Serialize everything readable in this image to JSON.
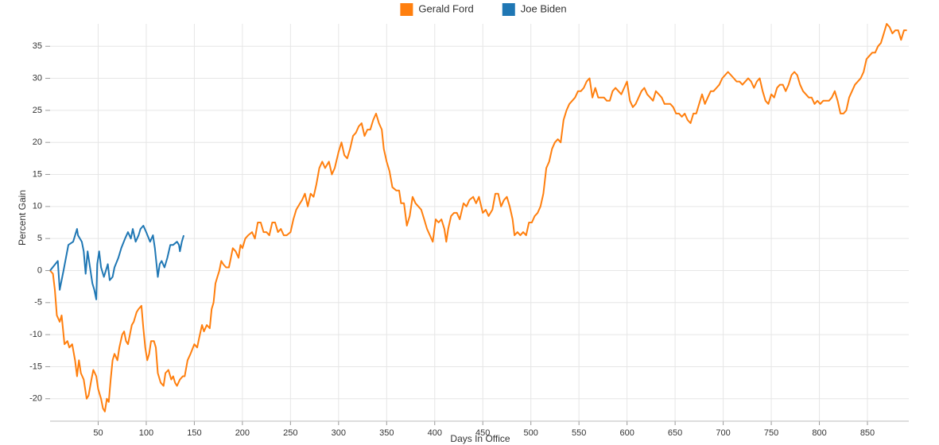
{
  "chart_data": {
    "type": "line",
    "x_label": "Days In Office",
    "y_label": "Percent Gain",
    "xlim": [
      0,
      893
    ],
    "ylim": [
      -23.5,
      38.5
    ],
    "xticks": [
      50,
      100,
      150,
      200,
      250,
      300,
      350,
      400,
      450,
      500,
      550,
      600,
      650,
      700,
      750,
      800,
      850
    ],
    "yticks": [
      -20,
      -15,
      -10,
      -5,
      0,
      5,
      10,
      15,
      20,
      25,
      30,
      35
    ],
    "grid": true,
    "legend": "top",
    "series": [
      {
        "name": "Gerald Ford",
        "color": "#ff7f0e",
        "x": [
          0,
          3,
          5,
          7,
          10,
          12,
          15,
          18,
          20,
          23,
          26,
          28,
          30,
          32,
          35,
          38,
          40,
          43,
          45,
          48,
          50,
          53,
          55,
          57,
          59,
          61,
          63,
          65,
          67,
          70,
          72,
          75,
          77,
          79,
          81,
          83,
          85,
          87,
          90,
          92,
          95,
          97,
          99,
          101,
          103,
          105,
          108,
          110,
          112,
          115,
          118,
          120,
          123,
          126,
          128,
          130,
          132,
          135,
          138,
          140,
          143,
          146,
          150,
          153,
          155,
          158,
          160,
          163,
          166,
          168,
          170,
          172,
          174,
          176,
          178,
          180,
          183,
          186,
          188,
          190,
          193,
          196,
          198,
          200,
          203,
          206,
          210,
          213,
          216,
          219,
          222,
          225,
          228,
          231,
          234,
          237,
          240,
          243,
          246,
          250,
          253,
          256,
          260,
          262,
          265,
          268,
          271,
          274,
          277,
          280,
          283,
          286,
          290,
          293,
          296,
          300,
          303,
          306,
          309,
          312,
          315,
          318,
          321,
          324,
          327,
          330,
          333,
          336,
          339,
          342,
          345,
          347,
          350,
          353,
          356,
          360,
          363,
          365,
          368,
          371,
          374,
          377,
          380,
          383,
          386,
          389,
          392,
          395,
          398,
          401,
          404,
          407,
          410,
          412,
          414,
          417,
          420,
          423,
          426,
          430,
          433,
          436,
          440,
          443,
          446,
          450,
          453,
          456,
          460,
          463,
          466,
          469,
          472,
          475,
          478,
          481,
          483,
          486,
          489,
          492,
          495,
          498,
          501,
          504,
          507,
          510,
          513,
          516,
          519,
          522,
          525,
          528,
          531,
          534,
          537,
          540,
          543,
          546,
          549,
          552,
          555,
          558,
          561,
          564,
          567,
          570,
          573,
          576,
          579,
          582,
          585,
          588,
          591,
          594,
          597,
          600,
          603,
          606,
          609,
          612,
          615,
          618,
          621,
          624,
          627,
          630,
          633,
          636,
          639,
          642,
          645,
          648,
          651,
          654,
          657,
          660,
          663,
          666,
          669,
          672,
          675,
          678,
          681,
          684,
          687,
          690,
          693,
          696,
          699,
          702,
          705,
          708,
          711,
          714,
          717,
          720,
          723,
          726,
          729,
          732,
          735,
          738,
          741,
          744,
          747,
          750,
          753,
          756,
          759,
          762,
          765,
          768,
          771,
          774,
          777,
          780,
          783,
          786,
          789,
          792,
          795,
          798,
          801,
          804,
          807,
          810,
          813,
          816,
          819,
          822,
          825,
          828,
          831,
          834,
          837,
          840,
          843,
          846,
          849,
          852,
          855,
          858,
          861,
          864,
          867,
          870,
          873,
          876,
          879,
          882,
          885,
          888,
          891
        ],
        "values": [
          0,
          -0.5,
          -3,
          -7,
          -8,
          -7,
          -11.5,
          -11,
          -12,
          -11.5,
          -14,
          -16.5,
          -14,
          -16,
          -17,
          -20,
          -19.5,
          -17,
          -15.5,
          -16.5,
          -18.5,
          -20,
          -21.5,
          -22,
          -20,
          -20.5,
          -17,
          -14,
          -13,
          -14,
          -12,
          -10,
          -9.5,
          -11,
          -11.5,
          -10,
          -8.5,
          -8,
          -6.5,
          -6,
          -5.5,
          -9,
          -12,
          -14,
          -13,
          -11,
          -11,
          -12,
          -16,
          -17.5,
          -18,
          -16,
          -15.5,
          -17,
          -16.5,
          -17.5,
          -18,
          -17,
          -16.5,
          -16.5,
          -14,
          -13,
          -11.5,
          -12,
          -10.5,
          -8.5,
          -9.5,
          -8.5,
          -9,
          -6,
          -5,
          -2,
          -1,
          0,
          1.5,
          1,
          0.5,
          0.5,
          2,
          3.5,
          3,
          2,
          4,
          3.5,
          5,
          5.5,
          6,
          5,
          7.5,
          7.5,
          6,
          6,
          5.5,
          7.5,
          7.5,
          6,
          6.5,
          5.5,
          5.5,
          6,
          8,
          9.5,
          10.5,
          11,
          12,
          10,
          12,
          11.5,
          13.5,
          16,
          17,
          16,
          17,
          15,
          16,
          18.5,
          20,
          18,
          17.5,
          19,
          21,
          21.5,
          22.5,
          23,
          21,
          22,
          22,
          23.5,
          24.5,
          23,
          22,
          19,
          17,
          15.5,
          13,
          12.5,
          12.5,
          10.5,
          10.5,
          7,
          8.5,
          11.5,
          10.5,
          10,
          9.5,
          8,
          6.5,
          5.5,
          4.5,
          8,
          7.5,
          8,
          6.5,
          4.5,
          6.5,
          8.5,
          9,
          9,
          8,
          10.5,
          10,
          11,
          11.5,
          10.5,
          11.5,
          9,
          9.5,
          8.5,
          9.5,
          12,
          12,
          10,
          11,
          11.5,
          10,
          8,
          5.5,
          6,
          5.5,
          6,
          5.5,
          7.5,
          7.5,
          8.5,
          9,
          10,
          12,
          16,
          17,
          19,
          20,
          20.5,
          20,
          23.5,
          25,
          26,
          26.5,
          27,
          28,
          28,
          28.5,
          29.5,
          30,
          27,
          28.5,
          27,
          27,
          27,
          26.5,
          26.5,
          28,
          28.5,
          28,
          27.5,
          28.5,
          29.5,
          26.5,
          25.5,
          26,
          27,
          28,
          28.5,
          27.5,
          27,
          26.5,
          28,
          27.5,
          27,
          26,
          26,
          26,
          25.5,
          24.5,
          24.5,
          24,
          24.5,
          23.5,
          23,
          24.5,
          24.5,
          26,
          27.5,
          26,
          27,
          28,
          28,
          28.5,
          29,
          30,
          30.5,
          31,
          30.5,
          30,
          29.5,
          29.5,
          29,
          29.5,
          30,
          29.5,
          28.5,
          29.5,
          30,
          28,
          26.5,
          26,
          27.5,
          27,
          28.5,
          29,
          29,
          28,
          29,
          30.5,
          31,
          30.5,
          29,
          28,
          27.5,
          27,
          27,
          26,
          26.5,
          26,
          26.5,
          26.5,
          26.5,
          27,
          28,
          26.5,
          24.5,
          24.5,
          25,
          27,
          28,
          29,
          29.5,
          30,
          31,
          33,
          33.5,
          34,
          34,
          35,
          35.5,
          37,
          38.5,
          38,
          37,
          37.5,
          37.5,
          36,
          37.5,
          37.5
        ]
      },
      {
        "name": "Joe Biden",
        "color": "#1f77b4",
        "x": [
          0,
          8,
          10,
          14,
          19,
          24,
          28,
          29,
          33,
          35,
          37,
          39,
          42,
          44,
          46,
          48,
          49,
          51,
          53,
          56,
          60,
          62,
          65,
          67,
          71,
          74,
          78,
          81,
          84,
          86,
          89,
          92,
          94,
          97,
          100,
          104,
          107,
          109,
          112,
          114,
          116,
          119,
          122,
          125,
          128,
          132,
          134,
          135,
          137,
          139
        ],
        "values": [
          0,
          1.5,
          -3,
          0,
          4,
          4.5,
          6.5,
          5.5,
          4.5,
          3,
          -0.5,
          3,
          0,
          -2,
          -3,
          -4.5,
          1,
          3,
          0.5,
          -1,
          1,
          -1.5,
          -1,
          0.5,
          2,
          3.5,
          5,
          6,
          5,
          6.5,
          4.5,
          5.5,
          6.5,
          7,
          6,
          4.5,
          5.5,
          3.5,
          -1,
          1,
          1.5,
          0.5,
          2,
          4,
          4,
          4.5,
          4,
          3,
          4.5,
          5.5
        ]
      }
    ]
  }
}
